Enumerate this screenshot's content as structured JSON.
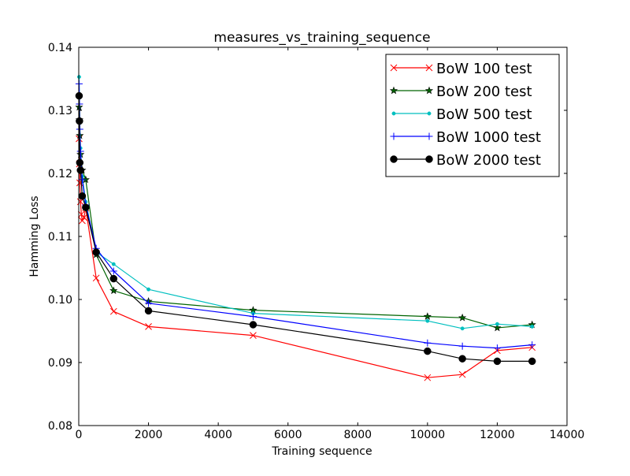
{
  "chart_data": {
    "type": "line",
    "title": "measures_vs_training_sequence",
    "xlabel": "Training sequence",
    "ylabel": "Hamming Loss",
    "xlim": [
      0,
      14000
    ],
    "ylim": [
      0.08,
      0.14
    ],
    "xticks": [
      0,
      2000,
      4000,
      6000,
      8000,
      10000,
      12000,
      14000
    ],
    "xtick_labels": [
      "0",
      "2000",
      "4000",
      "6000",
      "8000",
      "10000",
      "12000",
      "14000"
    ],
    "yticks": [
      0.08,
      0.09,
      0.1,
      0.11,
      0.12,
      0.13,
      0.14
    ],
    "ytick_labels": [
      "0.08",
      "0.09",
      "0.10",
      "0.11",
      "0.12",
      "0.13",
      "0.14"
    ],
    "grid": false,
    "legend_position": "top-right",
    "series": [
      {
        "name": "BoW 100 test",
        "color": "#ff0000",
        "marker": "x",
        "x": [
          10,
          20,
          30,
          50,
          75,
          100,
          150,
          200,
          500,
          1000,
          2000,
          5000,
          10000,
          11000,
          12000,
          13000
        ],
        "y": [
          0.1255,
          0.1215,
          0.1185,
          0.1155,
          0.1135,
          0.1125,
          0.113,
          0.1145,
          0.1034,
          0.0981,
          0.0957,
          0.0943,
          0.0876,
          0.0881,
          0.0919,
          0.0924
        ]
      },
      {
        "name": "BoW 200 test",
        "color": "#006400",
        "marker": "star",
        "x": [
          10,
          20,
          30,
          50,
          100,
          200,
          500,
          1000,
          2000,
          5000,
          10000,
          11000,
          12000,
          13000
        ],
        "y": [
          0.1305,
          0.1285,
          0.126,
          0.123,
          0.1205,
          0.119,
          0.1071,
          0.1014,
          0.0997,
          0.0983,
          0.0973,
          0.0971,
          0.0955,
          0.096
        ]
      },
      {
        "name": "BoW 500 test",
        "color": "#00bfbf",
        "marker": "dot",
        "x": [
          10,
          20,
          30,
          50,
          100,
          200,
          500,
          1000,
          2000,
          5000,
          10000,
          11000,
          12000,
          13000
        ],
        "y": [
          0.1353,
          0.132,
          0.128,
          0.124,
          0.1195,
          0.1155,
          0.1075,
          0.1056,
          0.1016,
          0.0978,
          0.0966,
          0.0954,
          0.0961,
          0.0957
        ]
      },
      {
        "name": "BoW 1000 test",
        "color": "#0000ff",
        "marker": "plus",
        "x": [
          10,
          20,
          30,
          50,
          100,
          200,
          500,
          1000,
          2000,
          5000,
          10000,
          11000,
          12000,
          13000
        ],
        "y": [
          0.1342,
          0.131,
          0.127,
          0.1235,
          0.119,
          0.115,
          0.1081,
          0.1045,
          0.0994,
          0.0973,
          0.0931,
          0.0926,
          0.0923,
          0.0928
        ]
      },
      {
        "name": "BoW 2000 test",
        "color": "#000000",
        "marker": "circle",
        "x": [
          10,
          20,
          30,
          50,
          100,
          200,
          500,
          1000,
          2000,
          5000,
          10000,
          11000,
          12000,
          13000
        ],
        "y": [
          0.1323,
          0.1283,
          0.1217,
          0.1205,
          0.1164,
          0.1146,
          0.1075,
          0.1033,
          0.0982,
          0.096,
          0.0918,
          0.0906,
          0.0902,
          0.0902
        ]
      }
    ]
  }
}
